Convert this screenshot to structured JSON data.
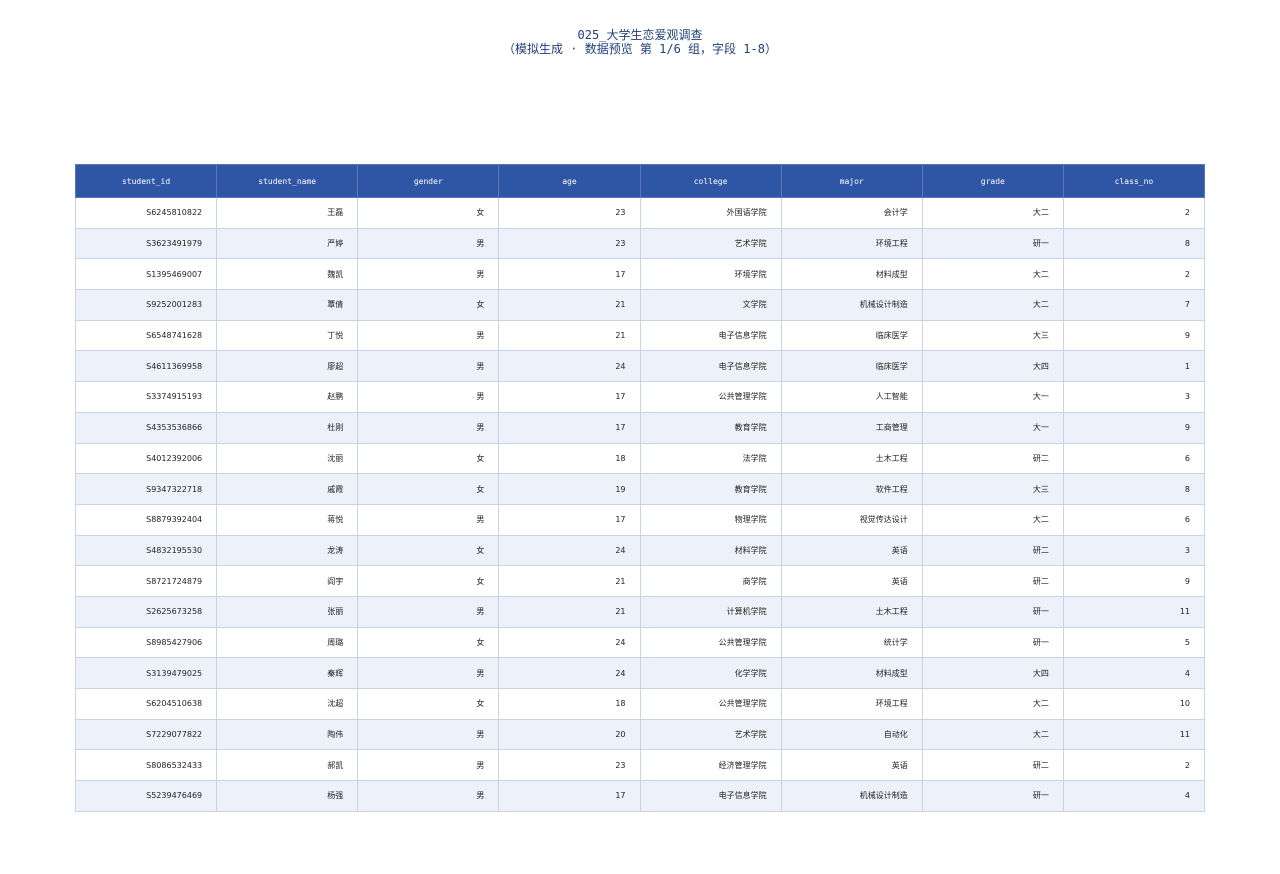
{
  "header": {
    "title": "025_大学生恋爱观调查",
    "subtitle": "（模拟生成 · 数据预览 第 1/6 组，字段 1-8）"
  },
  "table": {
    "columns": [
      "student_id",
      "student_name",
      "gender",
      "age",
      "college",
      "major",
      "grade",
      "class_no"
    ],
    "rows": [
      [
        "S6245810822",
        "王磊",
        "女",
        23,
        "外国语学院",
        "会计学",
        "大二",
        2
      ],
      [
        "S3623491979",
        "严婷",
        "男",
        23,
        "艺术学院",
        "环境工程",
        "研一",
        8
      ],
      [
        "S1395469007",
        "魏凯",
        "男",
        17,
        "环境学院",
        "材料成型",
        "大二",
        2
      ],
      [
        "S9252001283",
        "覃倩",
        "女",
        21,
        "文学院",
        "机械设计制造",
        "大二",
        7
      ],
      [
        "S6548741628",
        "丁悦",
        "男",
        21,
        "电子信息学院",
        "临床医学",
        "大三",
        9
      ],
      [
        "S4611369958",
        "廖超",
        "男",
        24,
        "电子信息学院",
        "临床医学",
        "大四",
        1
      ],
      [
        "S3374915193",
        "赵鹏",
        "男",
        17,
        "公共管理学院",
        "人工智能",
        "大一",
        3
      ],
      [
        "S4353536866",
        "杜刚",
        "男",
        17,
        "教育学院",
        "工商管理",
        "大一",
        9
      ],
      [
        "S4012392006",
        "沈丽",
        "女",
        18,
        "法学院",
        "土木工程",
        "研二",
        6
      ],
      [
        "S9347322718",
        "戚霞",
        "女",
        19,
        "教育学院",
        "软件工程",
        "大三",
        8
      ],
      [
        "S8879392404",
        "蒋悦",
        "男",
        17,
        "物理学院",
        "视觉传达设计",
        "大二",
        6
      ],
      [
        "S4832195530",
        "龙涛",
        "女",
        24,
        "材料学院",
        "英语",
        "研二",
        3
      ],
      [
        "S8721724879",
        "阎宇",
        "女",
        21,
        "商学院",
        "英语",
        "研二",
        9
      ],
      [
        "S2625673258",
        "张丽",
        "男",
        21,
        "计算机学院",
        "土木工程",
        "研一",
        11
      ],
      [
        "S8985427906",
        "周璐",
        "女",
        24,
        "公共管理学院",
        "统计学",
        "研一",
        5
      ],
      [
        "S3139479025",
        "秦辉",
        "男",
        24,
        "化学学院",
        "材料成型",
        "大四",
        4
      ],
      [
        "S6204510638",
        "沈超",
        "女",
        18,
        "公共管理学院",
        "环境工程",
        "大二",
        10
      ],
      [
        "S7229077822",
        "陶伟",
        "男",
        20,
        "艺术学院",
        "自动化",
        "大二",
        11
      ],
      [
        "S8086532433",
        "郝凯",
        "男",
        23,
        "经济管理学院",
        "英语",
        "研二",
        2
      ],
      [
        "S5239476469",
        "杨强",
        "男",
        17,
        "电子信息学院",
        "机械设计制造",
        "研一",
        4
      ]
    ]
  }
}
